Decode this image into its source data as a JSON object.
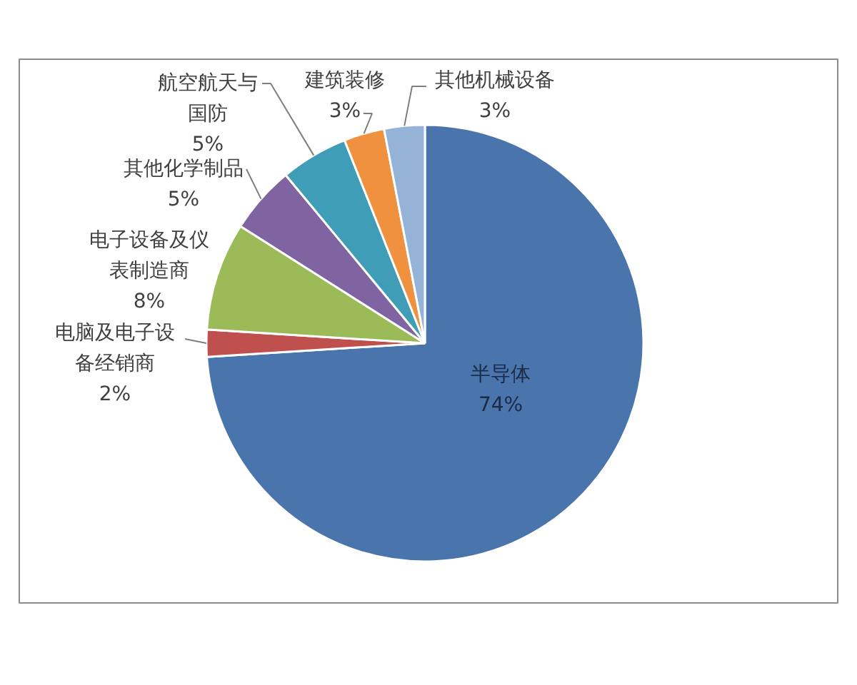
{
  "chart_data": {
    "type": "pie",
    "categories": [
      "半导体",
      "电脑及电子设备经销商",
      "电子设备及仪表制造商",
      "其他化学制品",
      "航空航天与国防",
      "建筑装修",
      "其他机械设备"
    ],
    "values": [
      74,
      2,
      8,
      5,
      5,
      3,
      3
    ],
    "colors": [
      "#4a74ac",
      "#c0504d",
      "#9bbb59",
      "#8064a2",
      "#3f9db8",
      "#f0913f",
      "#95b3d7"
    ],
    "value_labels": [
      "74%",
      "2%",
      "8%",
      "5%",
      "5%",
      "3%",
      "3%"
    ]
  }
}
